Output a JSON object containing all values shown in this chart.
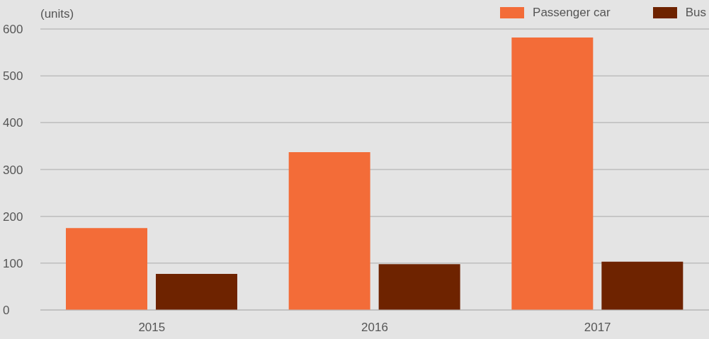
{
  "chart_data": {
    "type": "bar",
    "ylabel": "(units)",
    "categories": [
      "2015",
      "2016",
      "2017"
    ],
    "series": [
      {
        "name": "Passenger car",
        "color": "#f36c38",
        "values": [
          175,
          337,
          582
        ]
      },
      {
        "name": "Bus",
        "color": "#6e2300",
        "values": [
          77,
          98,
          103
        ]
      }
    ],
    "ylim": [
      0,
      600
    ],
    "yticks": [
      0,
      100,
      200,
      300,
      400,
      500,
      600
    ],
    "grid": "y",
    "legend": "top right"
  }
}
